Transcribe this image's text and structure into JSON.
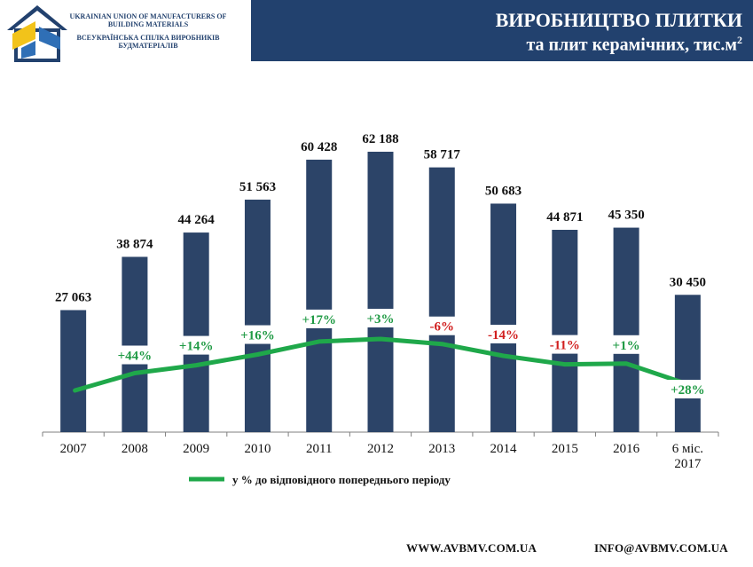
{
  "header": {
    "title_line1": "ВИРОБНИЦТВО ПЛИТКИ",
    "title_line2": "та плит керамічних, тис.м",
    "title_sup": "2",
    "org_en": "UKRAINIAN UNION OF MANUFACTURERS OF BUILDING MATERIALS",
    "org_ua": "ВСЕУКРАЇНСЬКА СПІЛКА ВИРОБНИКІВ БУДМАТЕРІАЛІВ",
    "brand_color": "#22416e"
  },
  "footer": {
    "website": "WWW.AVBMV.COM.UA",
    "email": "INFO@AVBMV.COM.UA"
  },
  "chart_data": {
    "type": "bar",
    "categories": [
      "2007",
      "2008",
      "2009",
      "2010",
      "2011",
      "2012",
      "2013",
      "2014",
      "2015",
      "2016",
      "6 міс.\n2017"
    ],
    "series": [
      {
        "type": "bar",
        "values": [
          27063,
          38874,
          44264,
          51563,
          60428,
          62188,
          58717,
          50683,
          44871,
          45350,
          30450
        ],
        "labels": [
          "27 063",
          "38 874",
          "44 264",
          "51 563",
          "60 428",
          "62 188",
          "58 717",
          "50 683",
          "44 871",
          "45 350",
          "30 450"
        ],
        "color": "#2c4468"
      },
      {
        "name": "у % до відповідного попереднього періоду",
        "type": "line",
        "values": [
          null,
          44,
          14,
          16,
          17,
          3,
          -6,
          -14,
          -11,
          1,
          28
        ],
        "labels": [
          "",
          "+44%",
          "+14%",
          "+16%",
          "+17%",
          "+3%",
          "-6%",
          "-14%",
          "-11%",
          "+1%",
          "+28%"
        ],
        "color": "#1fa84a",
        "positive_label_color": "#1f9a44",
        "negative_label_color": "#d11f1f"
      }
    ],
    "ylim": [
      0,
      66000
    ],
    "grid": false,
    "legend": "bottom-left"
  }
}
